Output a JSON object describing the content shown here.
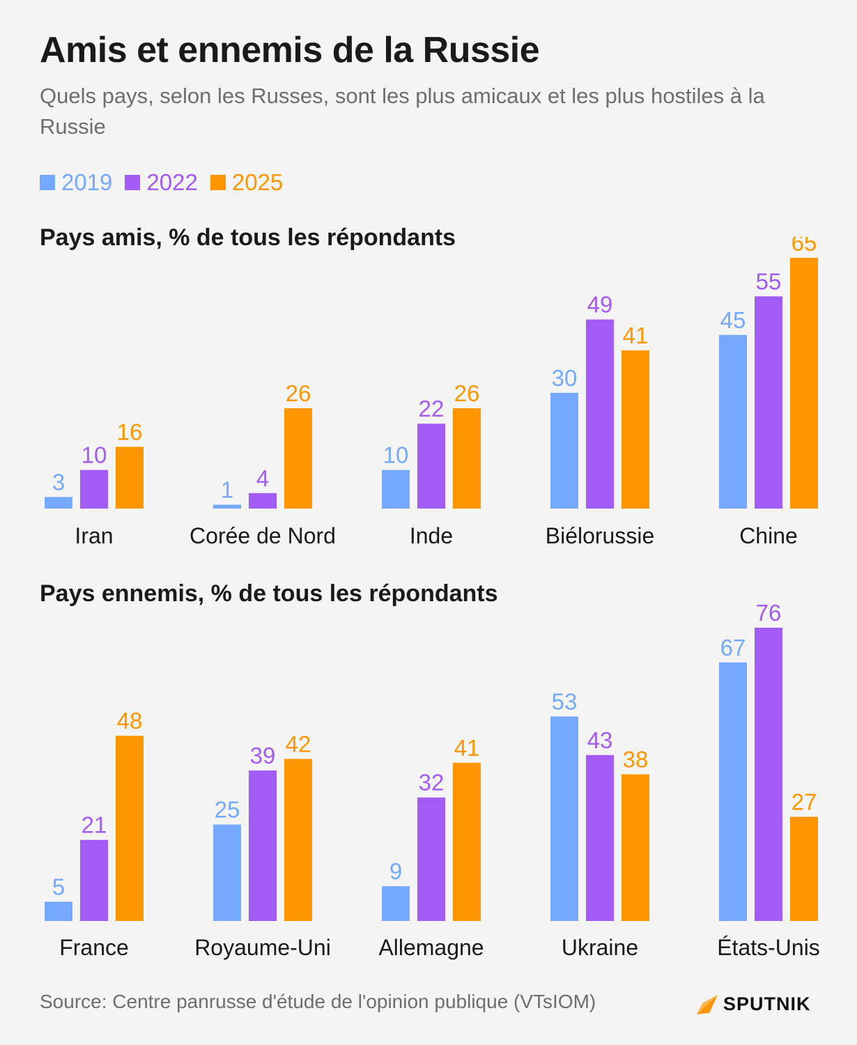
{
  "header": {
    "title": "Amis et ennemis de la Russie",
    "subtitle": "Quels pays, selon les Russes, sont les plus amicaux et les plus hostiles à la Russie"
  },
  "legend": [
    {
      "label": "2019",
      "color": "#75a9ff"
    },
    {
      "label": "2022",
      "color": "#a25bf5"
    },
    {
      "label": "2025",
      "color": "#ff9600"
    }
  ],
  "footer": {
    "source": "Source: Centre panrusse d'étude de l'opinion publique (VTsIOM)",
    "logo_text": "SPUTNIK",
    "logo_icon": "sputnik-arrow-icon"
  },
  "chart_data": [
    {
      "type": "bar",
      "title": "Pays amis, % de tous les répondants",
      "categories": [
        "Iran",
        "Corée de Nord",
        "Inde",
        "Biélorussie",
        "Chine"
      ],
      "series": [
        {
          "name": "2019",
          "color": "#75a9ff",
          "values": [
            3,
            1,
            10,
            30,
            45
          ]
        },
        {
          "name": "2022",
          "color": "#a25bf5",
          "values": [
            10,
            4,
            22,
            49,
            55
          ]
        },
        {
          "name": "2025",
          "color": "#ff9600",
          "values": [
            16,
            26,
            26,
            41,
            65
          ]
        }
      ],
      "ylim": [
        0,
        65
      ],
      "grid": false
    },
    {
      "type": "bar",
      "title": "Pays ennemis, % de tous les répondants",
      "categories": [
        "France",
        "Royaume-Uni",
        "Allemagne",
        "Ukraine",
        "États-Unis"
      ],
      "series": [
        {
          "name": "2019",
          "color": "#75a9ff",
          "values": [
            5,
            25,
            9,
            53,
            67
          ]
        },
        {
          "name": "2022",
          "color": "#a25bf5",
          "values": [
            21,
            39,
            32,
            43,
            76
          ]
        },
        {
          "name": "2025",
          "color": "#ff9600",
          "values": [
            48,
            42,
            41,
            38,
            27
          ]
        }
      ],
      "ylim": [
        0,
        76
      ],
      "grid": false
    }
  ]
}
